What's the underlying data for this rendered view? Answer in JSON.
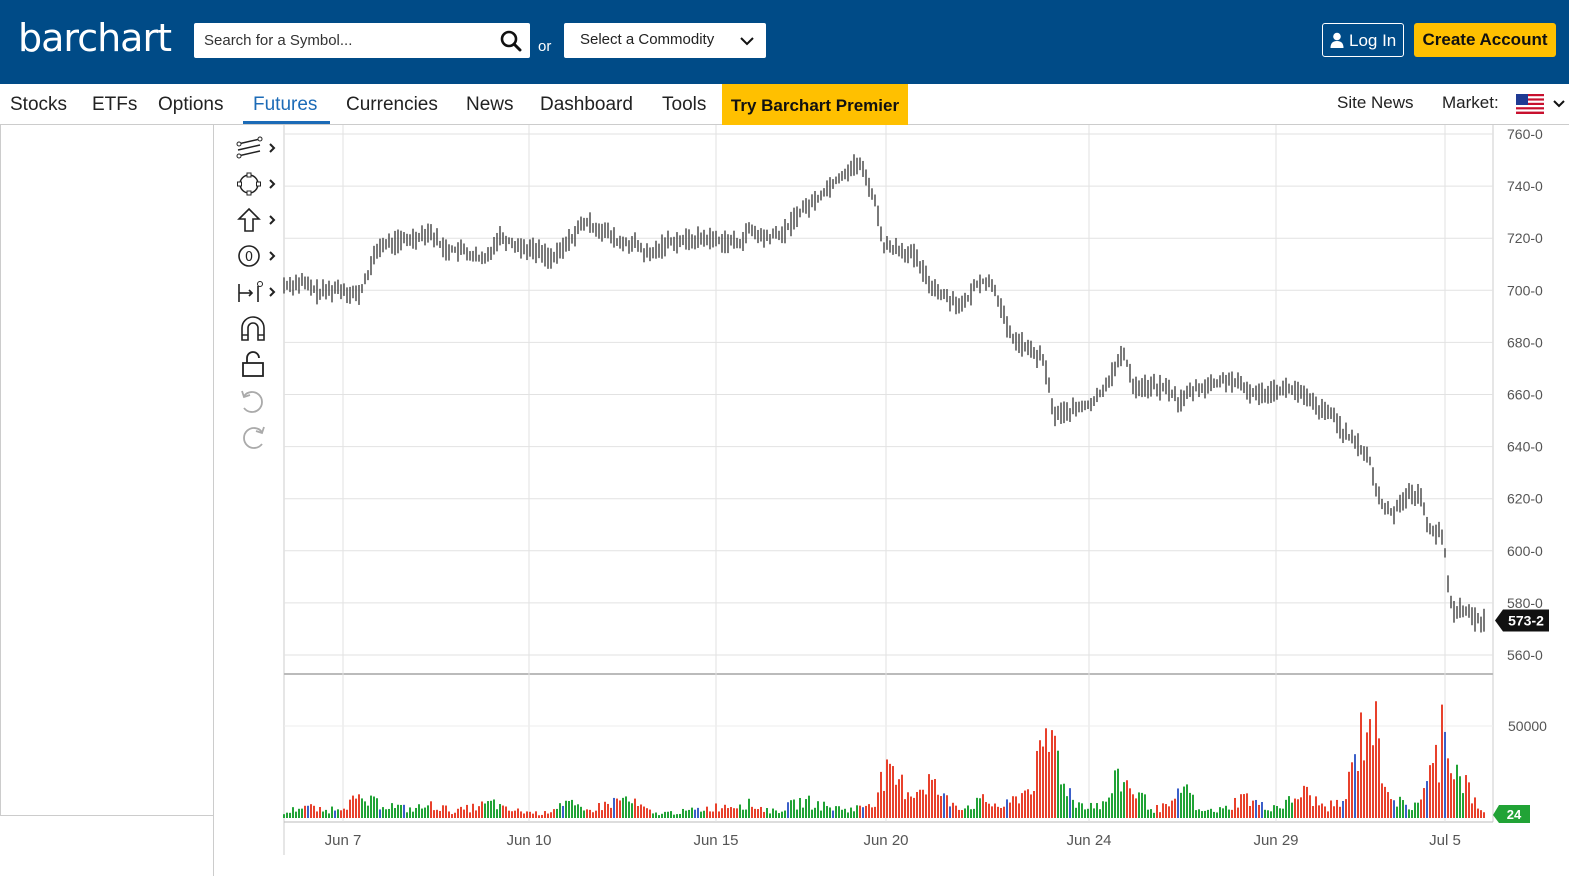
{
  "header": {
    "logo": "barchart",
    "search_placeholder": "Search for a Symbol...",
    "or_label": "or",
    "commodity_select": "Select a Commodity",
    "login_label": "Log In",
    "create_account_label": "Create Account",
    "brand_color": "#004b87",
    "accent_color": "#ffc000"
  },
  "nav": {
    "items": [
      "Stocks",
      "ETFs",
      "Options",
      "Futures",
      "Currencies",
      "News",
      "Dashboard",
      "Tools"
    ],
    "active": "Futures",
    "premier_label": "Try Barchart Premier",
    "site_news": "Site News",
    "market_label": "Market:"
  },
  "toolbar": {
    "tools": [
      "trend-lines-icon",
      "shapes-icon",
      "arrow-up-icon",
      "circle-zero-icon",
      "measure-icon",
      "magnet-icon",
      "lock-icon",
      "undo-icon",
      "redo-icon"
    ]
  },
  "chart_data": {
    "type": "line",
    "price_axis_ticks": [
      "760-0",
      "740-0",
      "720-0",
      "700-0",
      "680-0",
      "660-0",
      "640-0",
      "620-0",
      "600-0",
      "580-0",
      "560-0"
    ],
    "ylim": [
      560,
      760
    ],
    "last_price_label": "573-2",
    "volume_axis_ticks": [
      "50000"
    ],
    "last_volume_label": "24",
    "x_tick_labels": [
      "Jun 7",
      "Jun 10",
      "Jun 15",
      "Jun 20",
      "Jun 24",
      "Jun 29",
      "Jul 5"
    ],
    "price_path": [
      [
        0,
        702
      ],
      [
        18,
        703
      ],
      [
        35,
        699
      ],
      [
        55,
        701
      ],
      [
        75,
        698
      ],
      [
        95,
        717
      ],
      [
        130,
        720
      ],
      [
        145,
        723
      ],
      [
        160,
        716
      ],
      [
        180,
        715
      ],
      [
        200,
        711
      ],
      [
        215,
        721
      ],
      [
        235,
        717
      ],
      [
        255,
        715
      ],
      [
        270,
        712
      ],
      [
        285,
        719
      ],
      [
        300,
        726
      ],
      [
        320,
        723
      ],
      [
        335,
        718
      ],
      [
        350,
        718
      ],
      [
        365,
        713
      ],
      [
        385,
        719
      ],
      [
        400,
        719
      ],
      [
        420,
        720
      ],
      [
        440,
        719
      ],
      [
        455,
        718
      ],
      [
        465,
        723
      ],
      [
        480,
        720
      ],
      [
        500,
        722
      ],
      [
        515,
        730
      ],
      [
        530,
        734
      ],
      [
        545,
        740
      ],
      [
        560,
        745
      ],
      [
        575,
        749
      ],
      [
        590,
        736
      ],
      [
        600,
        717
      ],
      [
        615,
        716
      ],
      [
        630,
        713
      ],
      [
        645,
        703
      ],
      [
        660,
        698
      ],
      [
        680,
        694
      ],
      [
        695,
        704
      ],
      [
        710,
        702
      ],
      [
        725,
        683
      ],
      [
        745,
        677
      ],
      [
        760,
        673
      ],
      [
        770,
        652
      ],
      [
        790,
        654
      ],
      [
        810,
        657
      ],
      [
        825,
        666
      ],
      [
        840,
        676
      ],
      [
        850,
        663
      ],
      [
        870,
        663
      ],
      [
        885,
        662
      ],
      [
        895,
        657
      ],
      [
        910,
        662
      ],
      [
        930,
        664
      ],
      [
        945,
        666
      ],
      [
        960,
        662
      ],
      [
        975,
        660
      ],
      [
        990,
        662
      ],
      [
        1000,
        662
      ],
      [
        1010,
        662
      ],
      [
        1020,
        659
      ],
      [
        1030,
        656
      ],
      [
        1040,
        653
      ],
      [
        1050,
        652
      ],
      [
        1060,
        645
      ],
      [
        1075,
        640
      ],
      [
        1085,
        636
      ],
      [
        1090,
        626
      ],
      [
        1100,
        616
      ],
      [
        1110,
        615
      ],
      [
        1120,
        621
      ],
      [
        1135,
        622
      ],
      [
        1145,
        609
      ],
      [
        1152,
        607
      ],
      [
        1160,
        605
      ],
      [
        1162,
        593
      ],
      [
        1168,
        577
      ],
      [
        1180,
        578
      ],
      [
        1190,
        573.5
      ],
      [
        1200,
        573.25
      ]
    ],
    "volume_path": [
      [
        0,
        2
      ],
      [
        20,
        6
      ],
      [
        40,
        3
      ],
      [
        70,
        8
      ],
      [
        95,
        7
      ],
      [
        125,
        4
      ],
      [
        150,
        6
      ],
      [
        170,
        3
      ],
      [
        210,
        7
      ],
      [
        220,
        4
      ],
      [
        260,
        2
      ],
      [
        280,
        8
      ],
      [
        300,
        3
      ],
      [
        340,
        9
      ],
      [
        370,
        2
      ],
      [
        400,
        3
      ],
      [
        430,
        5
      ],
      [
        460,
        7
      ],
      [
        490,
        3
      ],
      [
        520,
        8
      ],
      [
        545,
        5
      ],
      [
        570,
        4
      ],
      [
        590,
        8
      ],
      [
        600,
        20
      ],
      [
        630,
        12
      ],
      [
        645,
        18
      ],
      [
        660,
        9
      ],
      [
        680,
        5
      ],
      [
        700,
        8
      ],
      [
        720,
        5
      ],
      [
        745,
        14
      ],
      [
        770,
        40
      ],
      [
        775,
        25
      ],
      [
        790,
        7
      ],
      [
        820,
        6
      ],
      [
        835,
        19
      ],
      [
        850,
        13
      ],
      [
        870,
        4
      ],
      [
        890,
        6
      ],
      [
        900,
        16
      ],
      [
        915,
        3
      ],
      [
        940,
        4
      ],
      [
        960,
        10
      ],
      [
        980,
        5
      ],
      [
        1000,
        6
      ],
      [
        1020,
        12
      ],
      [
        1040,
        5
      ],
      [
        1060,
        7
      ],
      [
        1075,
        35
      ],
      [
        1088,
        52
      ],
      [
        1095,
        30
      ],
      [
        1108,
        10
      ],
      [
        1125,
        4
      ],
      [
        1140,
        12
      ],
      [
        1155,
        30
      ],
      [
        1160,
        55
      ],
      [
        1168,
        25
      ],
      [
        1180,
        18
      ],
      [
        1195,
        3
      ]
    ]
  }
}
